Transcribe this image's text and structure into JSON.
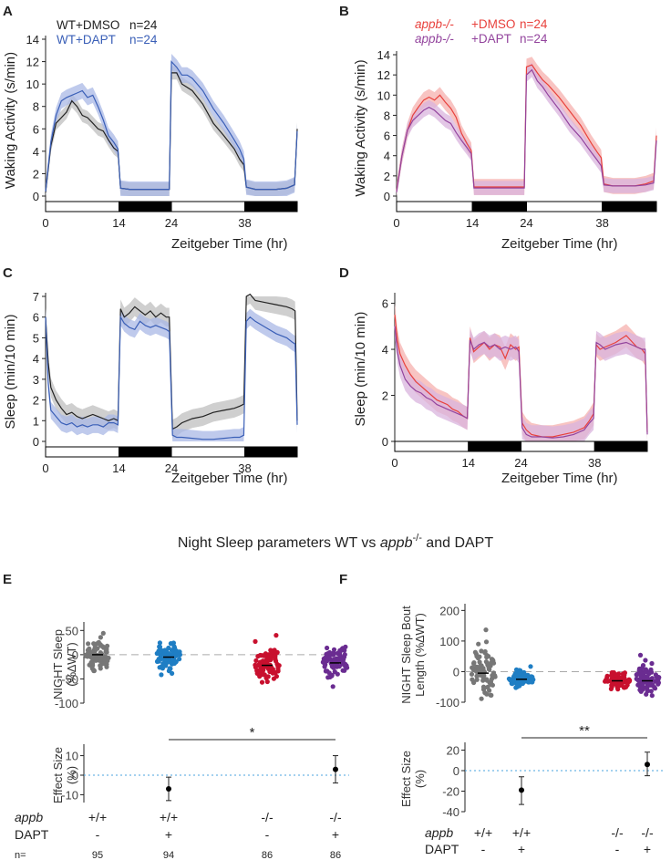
{
  "panel_labels": {
    "A": "A",
    "B": "B",
    "C": "C",
    "D": "D",
    "E": "E",
    "F": "F"
  },
  "section_title": {
    "prefix": "Night Sleep parameters WT vs ",
    "gene": "appb",
    "sup": "-/-",
    "suffix": " and DAPT"
  },
  "colors": {
    "black": "#222222",
    "gray_band": "#bfbfbf",
    "blue": "#3a5fb7",
    "blue_band": "#a9b8e6",
    "red": "#e8413c",
    "red_band": "#f6b0ad",
    "purple": "#93449d",
    "purple_band": "#d9b4de",
    "grey_dots": "#777777",
    "blue_dots": "#1f7ec4",
    "red_dots": "#c8102e",
    "purple_dots": "#6a2c91"
  },
  "chart_data": [
    {
      "panel": "A",
      "type": "line",
      "xlabel": "Zeitgeber Time (hr)",
      "ylabel": "Waking Activity (s/min)",
      "xticks": [
        0,
        14,
        24,
        38
      ],
      "yticks": [
        0,
        2,
        4,
        6,
        8,
        10,
        12,
        14
      ],
      "xlim": [
        0,
        48
      ],
      "ylim": [
        0,
        14
      ],
      "lightdark": [
        [
          0,
          14,
          "light"
        ],
        [
          14,
          24,
          "dark"
        ],
        [
          24,
          38,
          "light"
        ],
        [
          38,
          48,
          "dark"
        ]
      ],
      "legend": [
        {
          "label": "WT+DMSO",
          "n": "n=24",
          "color": "#222222"
        },
        {
          "label": "WT+DAPT",
          "n": "n=24",
          "color": "#3a5fb7"
        }
      ],
      "series": [
        {
          "name": "WT+DMSO",
          "x": [
            0,
            1,
            2,
            3,
            4,
            5,
            6,
            7,
            8,
            9,
            10,
            11,
            12,
            13,
            13.8,
            14.3,
            16,
            18,
            20,
            22,
            23.6,
            24,
            25,
            26,
            27,
            28,
            30,
            32,
            34,
            36,
            37,
            37.8,
            38.3,
            40,
            42,
            44,
            46,
            47.5,
            48
          ],
          "y": [
            0.3,
            4.5,
            6.5,
            7.0,
            7.5,
            8.5,
            8.0,
            7.2,
            7.0,
            6.5,
            6.0,
            5.8,
            5.0,
            4.3,
            4.0,
            0.7,
            0.6,
            0.6,
            0.6,
            0.6,
            0.6,
            11.0,
            11.0,
            10.0,
            9.7,
            9.4,
            8.2,
            6.5,
            5.4,
            4.2,
            3.3,
            2.8,
            0.8,
            0.6,
            0.6,
            0.6,
            0.7,
            1.0,
            6.0
          ],
          "band": 0.6
        },
        {
          "name": "WT+DAPT",
          "x": [
            0,
            1,
            2,
            3,
            4,
            5,
            6,
            7,
            8,
            9,
            10,
            11,
            12,
            13,
            13.8,
            14.3,
            16,
            18,
            20,
            22,
            23.6,
            24,
            25,
            26,
            27,
            28,
            30,
            32,
            34,
            36,
            37,
            37.8,
            38.3,
            40,
            42,
            44,
            46,
            47.5,
            48
          ],
          "y": [
            0.4,
            4.8,
            7.2,
            8.5,
            8.8,
            9.0,
            9.2,
            9.4,
            8.8,
            9.0,
            8.0,
            6.8,
            5.4,
            4.8,
            4.2,
            0.7,
            0.6,
            0.6,
            0.6,
            0.6,
            0.6,
            12.0,
            11.5,
            10.8,
            10.8,
            10.5,
            9.4,
            7.8,
            6.5,
            5.0,
            4.2,
            3.3,
            0.8,
            0.6,
            0.6,
            0.6,
            0.7,
            1.0,
            5.8
          ],
          "band": 0.7
        }
      ]
    },
    {
      "panel": "B",
      "type": "line",
      "xlabel": "Zeitgeber Time (hr)",
      "ylabel": "Waking Activity (s/min)",
      "xticks": [
        0,
        14,
        24,
        38
      ],
      "yticks": [
        0,
        2,
        4,
        6,
        8,
        10,
        12,
        14
      ],
      "xlim": [
        0,
        48
      ],
      "ylim": [
        0,
        14
      ],
      "lightdark": [
        [
          0,
          14,
          "light"
        ],
        [
          14,
          24,
          "dark"
        ],
        [
          24,
          38,
          "light"
        ],
        [
          38,
          48,
          "dark"
        ]
      ],
      "legend": [
        {
          "label": "appb-/-",
          "extra": "+DMSO",
          "n": "n=24",
          "color": "#e8413c"
        },
        {
          "label": "appb-/-",
          "extra": "+DAPT",
          "n": "n=24",
          "color": "#93449d"
        }
      ],
      "series": [
        {
          "name": "appb-/- +DMSO",
          "x": [
            0,
            1,
            2,
            3,
            4,
            5,
            6,
            7,
            8,
            9,
            10,
            11,
            12,
            13,
            13.8,
            14.3,
            16,
            18,
            20,
            22,
            23.6,
            24,
            25,
            26,
            27,
            28,
            30,
            32,
            34,
            36,
            37,
            37.8,
            38.3,
            40,
            42,
            44,
            46,
            47.5,
            48
          ],
          "y": [
            0.5,
            4.0,
            6.5,
            8.0,
            8.8,
            9.5,
            9.8,
            9.5,
            10.0,
            9.3,
            8.7,
            7.8,
            6.2,
            5.2,
            4.5,
            0.9,
            0.9,
            0.9,
            0.9,
            0.9,
            0.9,
            12.8,
            13.0,
            12.2,
            11.5,
            11.0,
            9.8,
            8.4,
            7.0,
            5.2,
            4.4,
            3.8,
            1.2,
            1.0,
            1.0,
            1.0,
            1.2,
            1.5,
            6.0
          ],
          "band": 0.8
        },
        {
          "name": "appb-/- +DAPT",
          "x": [
            0,
            1,
            2,
            3,
            4,
            5,
            6,
            7,
            8,
            9,
            10,
            11,
            12,
            13,
            13.8,
            14.3,
            16,
            18,
            20,
            22,
            23.6,
            24,
            25,
            26,
            27,
            28,
            30,
            32,
            34,
            36,
            37,
            37.8,
            38.3,
            40,
            42,
            44,
            46,
            47.5,
            48
          ],
          "y": [
            0.4,
            4.0,
            6.5,
            7.5,
            8.0,
            8.5,
            8.8,
            8.5,
            8.0,
            7.5,
            7.2,
            6.3,
            5.5,
            4.8,
            4.2,
            0.8,
            0.8,
            0.8,
            0.8,
            0.8,
            0.8,
            12.0,
            12.5,
            11.4,
            10.8,
            10.0,
            8.6,
            7.0,
            5.8,
            4.3,
            3.6,
            3.0,
            1.1,
            1.0,
            1.0,
            1.0,
            1.1,
            1.3,
            5.5
          ],
          "band": 0.7
        }
      ]
    },
    {
      "panel": "C",
      "type": "line",
      "xlabel": "Zeitgeber Time (hr)",
      "ylabel": "Sleep (min/10 min)",
      "xticks": [
        0,
        14,
        24,
        38
      ],
      "yticks": [
        0,
        1,
        2,
        3,
        4,
        5,
        6,
        7
      ],
      "xlim": [
        0,
        48
      ],
      "ylim": [
        0,
        7
      ],
      "lightdark": [
        [
          0,
          14,
          "light"
        ],
        [
          14,
          24,
          "dark"
        ],
        [
          24,
          38,
          "light"
        ],
        [
          38,
          48,
          "dark"
        ]
      ],
      "series": [
        {
          "name": "WT+DMSO",
          "x": [
            0,
            0.5,
            1,
            2,
            3,
            4,
            5,
            6,
            7,
            8,
            9,
            10,
            11,
            12,
            13,
            13.8,
            14.3,
            15,
            16,
            17,
            18,
            19,
            20,
            21,
            22,
            23,
            23.6,
            24.2,
            25,
            26,
            28,
            30,
            32,
            34,
            36,
            37,
            37.8,
            38.3,
            39,
            40,
            42,
            44,
            46,
            47,
            47.6,
            48
          ],
          "y": [
            6.0,
            3.8,
            2.6,
            2.0,
            1.6,
            1.3,
            1.4,
            1.2,
            1.1,
            1.2,
            1.3,
            1.2,
            1.1,
            1.0,
            1.1,
            1.0,
            6.4,
            6.0,
            6.2,
            6.5,
            6.3,
            6.1,
            6.3,
            6.0,
            6.2,
            6.0,
            6.0,
            0.6,
            0.7,
            0.9,
            1.1,
            1.2,
            1.4,
            1.5,
            1.6,
            1.7,
            1.8,
            7.0,
            7.1,
            6.8,
            6.7,
            6.6,
            6.5,
            6.4,
            6.3,
            1.0
          ],
          "band": 0.45
        },
        {
          "name": "WT+DAPT",
          "x": [
            0,
            0.5,
            1,
            2,
            3,
            4,
            5,
            6,
            7,
            8,
            9,
            10,
            11,
            12,
            13,
            13.8,
            14.3,
            15,
            16,
            17,
            18,
            19,
            20,
            21,
            22,
            23,
            23.6,
            24.2,
            25,
            26,
            28,
            30,
            32,
            34,
            36,
            37,
            37.8,
            38.3,
            39,
            40,
            42,
            44,
            46,
            47,
            47.6,
            48
          ],
          "y": [
            6.0,
            2.8,
            1.5,
            1.2,
            0.9,
            0.8,
            0.9,
            0.7,
            0.8,
            0.7,
            0.8,
            0.8,
            0.7,
            0.9,
            0.9,
            0.8,
            6.0,
            5.7,
            5.5,
            5.4,
            5.8,
            5.6,
            5.5,
            5.6,
            5.5,
            5.4,
            5.3,
            0.3,
            0.2,
            0.2,
            0.15,
            0.1,
            0.1,
            0.15,
            0.2,
            0.2,
            0.3,
            5.8,
            6.0,
            5.8,
            5.5,
            5.2,
            5.0,
            4.8,
            4.7,
            0.8
          ],
          "band": 0.4
        }
      ]
    },
    {
      "panel": "D",
      "type": "line",
      "xlabel": "Zeitgeber Time (hr)",
      "ylabel": "Sleep (min/10 min)",
      "xticks": [
        0,
        14,
        24,
        38
      ],
      "yticks": [
        0,
        2,
        4,
        6
      ],
      "xlim": [
        0,
        48
      ],
      "ylim": [
        0,
        6.3
      ],
      "lightdark": [
        [
          0,
          14,
          "light"
        ],
        [
          14,
          24,
          "dark"
        ],
        [
          24,
          38,
          "light"
        ],
        [
          38,
          48,
          "dark"
        ]
      ],
      "series": [
        {
          "name": "appb-/- +DMSO",
          "x": [
            0,
            0.5,
            1,
            2,
            3,
            4,
            5,
            6,
            7,
            8,
            9,
            10,
            11,
            12,
            13,
            13.8,
            14.3,
            15,
            16,
            17,
            18,
            19,
            20,
            21,
            22,
            23,
            23.6,
            24.2,
            25,
            26,
            28,
            30,
            32,
            34,
            36,
            37,
            37.8,
            38.3,
            39,
            40,
            42,
            44,
            46,
            47,
            47.6,
            48
          ],
          "y": [
            5.5,
            4.4,
            3.8,
            3.3,
            2.9,
            2.6,
            2.4,
            2.2,
            2.0,
            1.8,
            1.7,
            1.6,
            1.4,
            1.3,
            1.1,
            1.0,
            4.5,
            3.9,
            4.1,
            4.3,
            4.0,
            4.2,
            4.1,
            3.6,
            4.2,
            4.0,
            4.1,
            0.8,
            0.5,
            0.3,
            0.2,
            0.2,
            0.3,
            0.4,
            0.6,
            0.9,
            1.2,
            4.2,
            4.0,
            4.1,
            4.3,
            4.6,
            4.1,
            4.0,
            3.8,
            0.4
          ],
          "band": 0.5
        },
        {
          "name": "appb-/- +DAPT",
          "x": [
            0,
            0.5,
            1,
            2,
            3,
            4,
            5,
            6,
            7,
            8,
            9,
            10,
            11,
            12,
            13,
            13.8,
            14.3,
            15,
            16,
            17,
            18,
            19,
            20,
            21,
            22,
            23,
            23.6,
            24.2,
            25,
            26,
            28,
            30,
            32,
            34,
            36,
            37,
            37.8,
            38.3,
            39,
            40,
            42,
            44,
            46,
            47,
            47.6,
            48
          ],
          "y": [
            5.0,
            3.9,
            3.3,
            2.7,
            2.4,
            2.2,
            2.1,
            1.9,
            1.8,
            1.6,
            1.5,
            1.4,
            1.3,
            1.2,
            1.1,
            1.0,
            4.4,
            4.0,
            4.2,
            4.3,
            4.1,
            4.2,
            4.0,
            4.1,
            4.0,
            4.1,
            3.9,
            0.6,
            0.3,
            0.2,
            0.2,
            0.15,
            0.2,
            0.3,
            0.5,
            0.8,
            1.0,
            4.3,
            4.2,
            4.0,
            4.2,
            4.3,
            4.1,
            4.0,
            4.0,
            0.3
          ],
          "band": 0.5
        }
      ]
    },
    {
      "panel": "E",
      "type": "scatter",
      "top": {
        "ylabel_lines": [
          "NIGHT Sleep",
          "(%∆WT)"
        ],
        "yticks": [
          50,
          0,
          -50,
          -100
        ],
        "ylim": [
          -100,
          60
        ],
        "groups": [
          {
            "center": 0,
            "spread": 25
          },
          {
            "center": -5,
            "spread": 28
          },
          {
            "center": -22,
            "spread": 28
          },
          {
            "center": -17,
            "spread": 30
          }
        ]
      },
      "bottom": {
        "ylabel_lines": [
          "Effect Size",
          "(%)"
        ],
        "yticks": [
          10,
          0,
          -10
        ],
        "ylim": [
          -14,
          14
        ],
        "points": [
          {
            "group": 2,
            "value": -7,
            "lo": -13,
            "hi": -1
          },
          {
            "group": 4,
            "value": 3,
            "lo": -4,
            "hi": 10
          }
        ],
        "sig": {
          "from": 2,
          "to": 4,
          "label": "*"
        }
      },
      "rows": {
        "appb": {
          "label": "appb",
          "values": [
            "+/+",
            "+/+",
            "-/-",
            "-/-"
          ]
        },
        "dapt": {
          "label": "DAPT",
          "values": [
            "-",
            "+",
            "-",
            "+"
          ]
        },
        "n": {
          "label": "n=",
          "values": [
            "95",
            "94",
            "86",
            "86"
          ]
        }
      }
    },
    {
      "panel": "F",
      "type": "scatter",
      "top": {
        "ylabel_lines": [
          "NIGHT Sleep Bout",
          "Length (%∆WT)"
        ],
        "yticks": [
          200,
          100,
          0,
          -100
        ],
        "ylim": [
          -100,
          210
        ],
        "groups": [
          {
            "center": -5,
            "spread": 55
          },
          {
            "center": -25,
            "spread": 18
          },
          {
            "center": -30,
            "spread": 20
          },
          {
            "center": -30,
            "spread": 38
          }
        ]
      },
      "bottom": {
        "ylabel_lines": [
          "Effect Size",
          "(%)"
        ],
        "yticks": [
          20,
          0,
          -20,
          -40
        ],
        "ylim": [
          -40,
          24
        ],
        "points": [
          {
            "group": 2,
            "value": -19,
            "lo": -33,
            "hi": -6
          },
          {
            "group": 4,
            "value": 6,
            "lo": -5,
            "hi": 18
          }
        ],
        "sig": {
          "from": 2,
          "to": 4,
          "label": "**"
        }
      },
      "rows": {
        "appb": {
          "label": "appb",
          "values": [
            "+/+",
            "+/+",
            "-/-",
            "-/-"
          ]
        },
        "dapt": {
          "label": "DAPT",
          "values": [
            "-",
            "+",
            "-",
            "+"
          ]
        }
      }
    }
  ]
}
